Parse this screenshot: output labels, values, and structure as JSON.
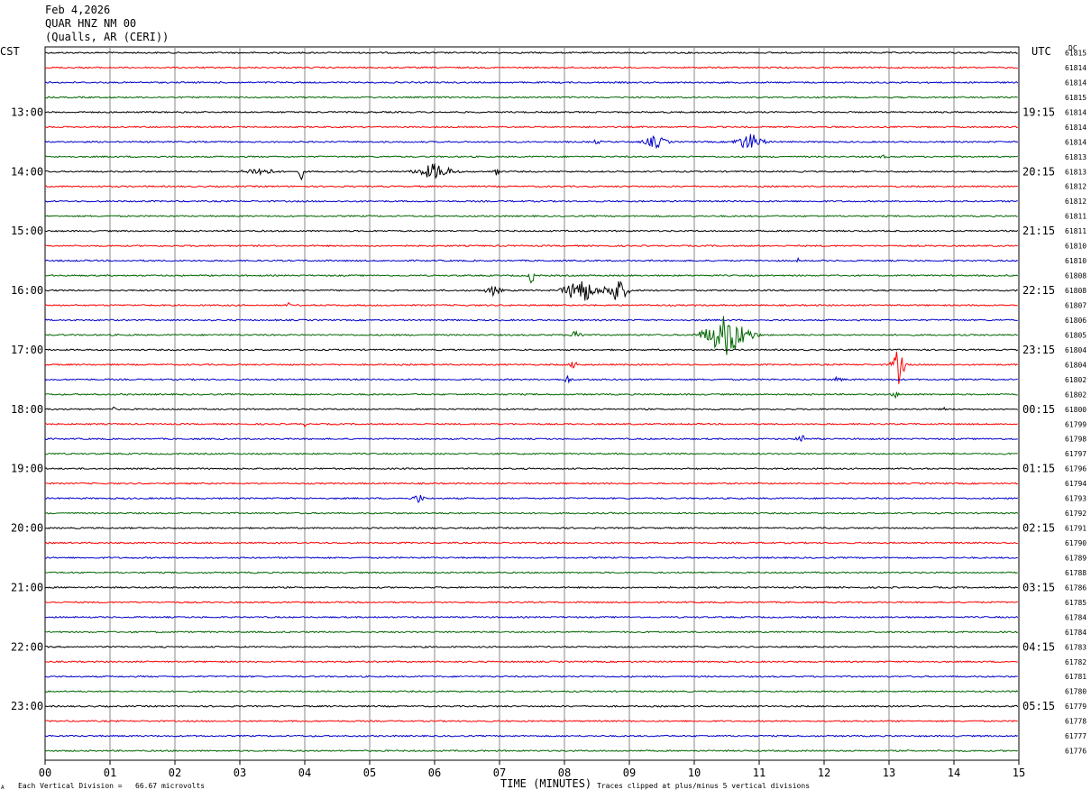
{
  "header": {
    "date": "Feb 4,2026",
    "station": "QUAR HNZ NM 00",
    "location": "(Qualls, AR (CERI))"
  },
  "labels": {
    "left_tz": "CST",
    "right_tz": "UTC",
    "dc": "DC"
  },
  "footer": {
    "scale_note": "Each Vertical Division =   66.67 microvolts",
    "clip_note": "Traces clipped at plus/minus 5 vertical divisions",
    "corner_mark": "A"
  },
  "chart_data": {
    "type": "line",
    "xlabel": "TIME (MINUTES)",
    "x_ticks": [
      "00",
      "01",
      "02",
      "03",
      "04",
      "05",
      "06",
      "07",
      "08",
      "09",
      "10",
      "11",
      "12",
      "13",
      "14",
      "15"
    ],
    "xlim": [
      0,
      15
    ],
    "trace_count": 48,
    "trace_minutes": 15,
    "trace_colors": [
      "#000000",
      "#ff0000",
      "#0000cc",
      "#006600"
    ],
    "grid": true,
    "left_hour_labels": [
      "13:00",
      "14:00",
      "15:00",
      "16:00",
      "17:00",
      "18:00",
      "19:00",
      "20:00",
      "21:00",
      "22:00",
      "23:00"
    ],
    "right_hour_labels": [
      "19:15",
      "20:15",
      "21:15",
      "22:15",
      "23:15",
      "00:15",
      "01:15",
      "02:15",
      "03:15",
      "04:15",
      "05:15"
    ],
    "hour_label_traces": [
      4,
      8,
      12,
      16,
      20,
      24,
      28,
      32,
      36,
      40,
      44
    ],
    "dc_offsets": [
      "61815",
      "61814",
      "61814",
      "61815",
      "61814",
      "61814",
      "61814",
      "61813",
      "61813",
      "61812",
      "61812",
      "61811",
      "61811",
      "61810",
      "61810",
      "61808",
      "61808",
      "61807",
      "61806",
      "61805",
      "61804",
      "61804",
      "61802",
      "61802",
      "61800",
      "61799",
      "61798",
      "61797",
      "61796",
      "61794",
      "61793",
      "61792",
      "61791",
      "61790",
      "61789",
      "61788",
      "61786",
      "61785",
      "61784",
      "61784",
      "61783",
      "61782",
      "61781",
      "61780",
      "61779",
      "61778",
      "61777",
      "61776"
    ],
    "events": [
      {
        "trace": 6,
        "minute": 8.5,
        "duration": 0.4,
        "amp": 3
      },
      {
        "trace": 6,
        "minute": 9.4,
        "duration": 0.8,
        "amp": 8
      },
      {
        "trace": 6,
        "minute": 10.85,
        "duration": 0.9,
        "amp": 11
      },
      {
        "trace": 7,
        "minute": 12.9,
        "duration": 0.2,
        "amp": 3
      },
      {
        "trace": 8,
        "minute": 3.3,
        "duration": 1.2,
        "amp": 5
      },
      {
        "trace": 8,
        "minute": 3.95,
        "duration": 0.2,
        "amp": 9
      },
      {
        "trace": 8,
        "minute": 6.0,
        "duration": 1.2,
        "amp": 10
      },
      {
        "trace": 8,
        "minute": 6.95,
        "duration": 0.2,
        "amp": 8
      },
      {
        "trace": 14,
        "minute": 11.6,
        "duration": 0.1,
        "amp": 3
      },
      {
        "trace": 15,
        "minute": 7.5,
        "duration": 0.2,
        "amp": 12
      },
      {
        "trace": 16,
        "minute": 6.9,
        "duration": 0.6,
        "amp": 6
      },
      {
        "trace": 16,
        "minute": 8.25,
        "duration": 1.0,
        "amp": 17
      },
      {
        "trace": 16,
        "minute": 8.8,
        "duration": 0.8,
        "amp": 15
      },
      {
        "trace": 17,
        "minute": 3.75,
        "duration": 0.2,
        "amp": 3
      },
      {
        "trace": 19,
        "minute": 8.2,
        "duration": 0.3,
        "amp": 12
      },
      {
        "trace": 19,
        "minute": 10.5,
        "duration": 1.4,
        "amp": 25
      },
      {
        "trace": 21,
        "minute": 8.15,
        "duration": 0.3,
        "amp": 6
      },
      {
        "trace": 21,
        "minute": 13.15,
        "duration": 0.4,
        "amp": 22
      },
      {
        "trace": 22,
        "minute": 8.05,
        "duration": 0.3,
        "amp": 5
      },
      {
        "trace": 22,
        "minute": 12.2,
        "duration": 0.6,
        "amp": 3
      },
      {
        "trace": 23,
        "minute": 13.1,
        "duration": 0.3,
        "amp": 4
      },
      {
        "trace": 24,
        "minute": 1.05,
        "duration": 0.2,
        "amp": 3
      },
      {
        "trace": 24,
        "minute": 13.85,
        "duration": 0.1,
        "amp": 3
      },
      {
        "trace": 25,
        "minute": 4.0,
        "duration": 0.1,
        "amp": 3
      },
      {
        "trace": 26,
        "minute": 11.65,
        "duration": 0.3,
        "amp": 8
      },
      {
        "trace": 30,
        "minute": 5.75,
        "duration": 0.4,
        "amp": 6
      }
    ]
  }
}
